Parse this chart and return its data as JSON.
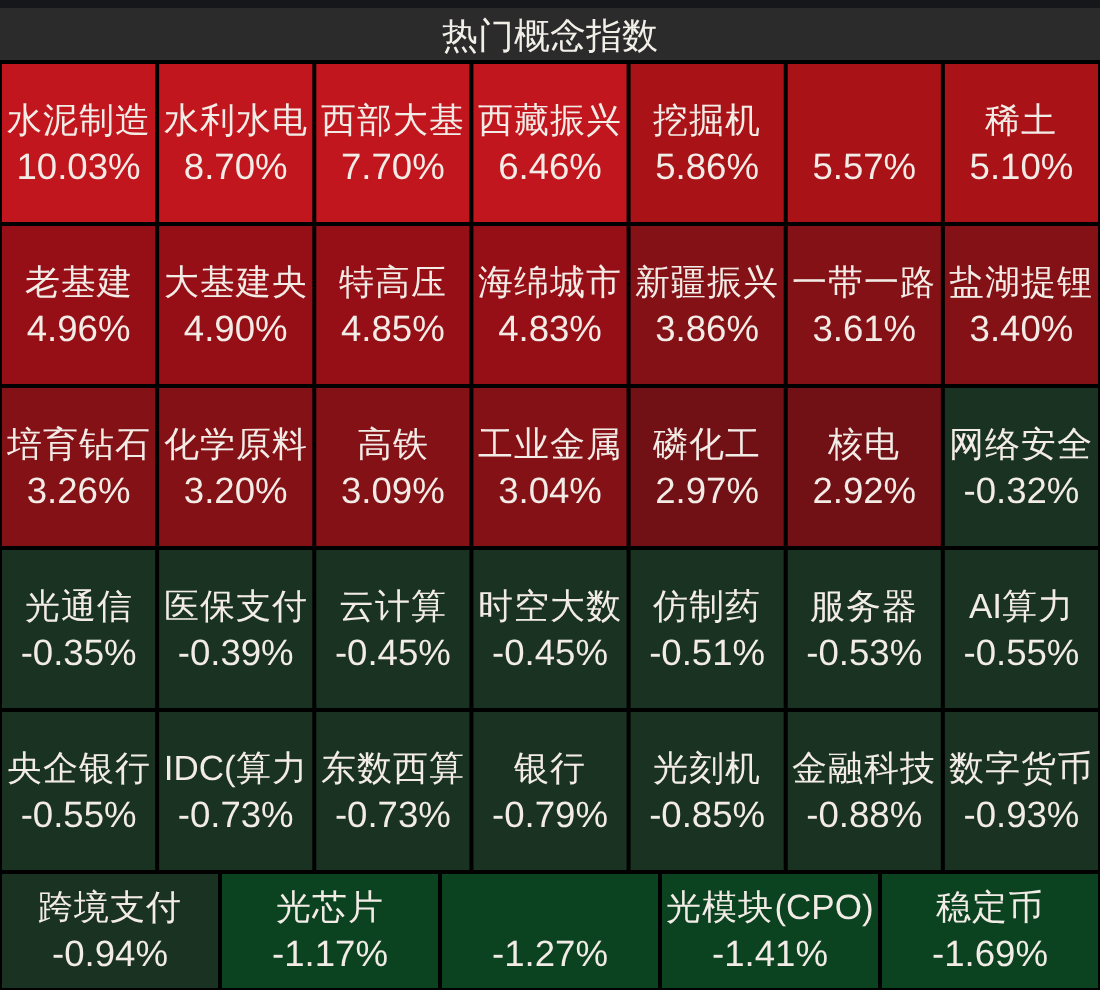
{
  "chart_data": {
    "type": "other",
    "title": "热门概念指数",
    "categories": [
      "水泥制造",
      "水利水电",
      "西部大基",
      "西藏振兴",
      "挖掘机",
      null,
      "稀土",
      "老基建",
      "大基建央",
      "特高压",
      "海绵城市",
      "新疆振兴",
      "一带一路",
      "盐湖提锂",
      "培育钻石",
      "化学原料",
      "高铁",
      "工业金属",
      "磷化工",
      "核电",
      "网络安全",
      "光通信",
      "医保支付",
      "云计算",
      "时空大数",
      "仿制药",
      "服务器",
      "AI算力",
      "央企银行",
      "IDC(算力",
      "东数西算",
      "银行",
      "光刻机",
      "金融科技",
      "数字货币",
      "跨境支付",
      "光芯片",
      null,
      "光模块(CPO)",
      "稳定币"
    ],
    "values": [
      10.03,
      8.7,
      7.7,
      6.46,
      5.86,
      5.57,
      5.1,
      4.96,
      4.9,
      4.85,
      4.83,
      3.86,
      3.61,
      3.4,
      3.26,
      3.2,
      3.09,
      3.04,
      2.97,
      2.92,
      -0.32,
      -0.35,
      -0.39,
      -0.45,
      -0.45,
      -0.51,
      -0.53,
      -0.55,
      -0.55,
      -0.73,
      -0.73,
      -0.79,
      -0.85,
      -0.88,
      -0.93,
      -0.94,
      -1.17,
      -1.27,
      -1.41,
      -1.69
    ],
    "value_labels": [
      "10.03%",
      "8.70%",
      "7.70%",
      "6.46%",
      "5.86%",
      "5.57%",
      "5.10%",
      "4.96%",
      "4.90%",
      "4.85%",
      "4.83%",
      "3.86%",
      "3.61%",
      "3.40%",
      "3.26%",
      "3.20%",
      "3.09%",
      "3.04%",
      "2.97%",
      "2.92%",
      "-0.32%",
      "-0.35%",
      "-0.39%",
      "-0.45%",
      "-0.45%",
      "-0.51%",
      "-0.53%",
      "-0.55%",
      "-0.55%",
      "-0.73%",
      "-0.73%",
      "-0.79%",
      "-0.85%",
      "-0.88%",
      "-0.93%",
      "-0.94%",
      "-1.17%",
      "-1.27%",
      "-1.41%",
      "-1.69%"
    ]
  }
}
